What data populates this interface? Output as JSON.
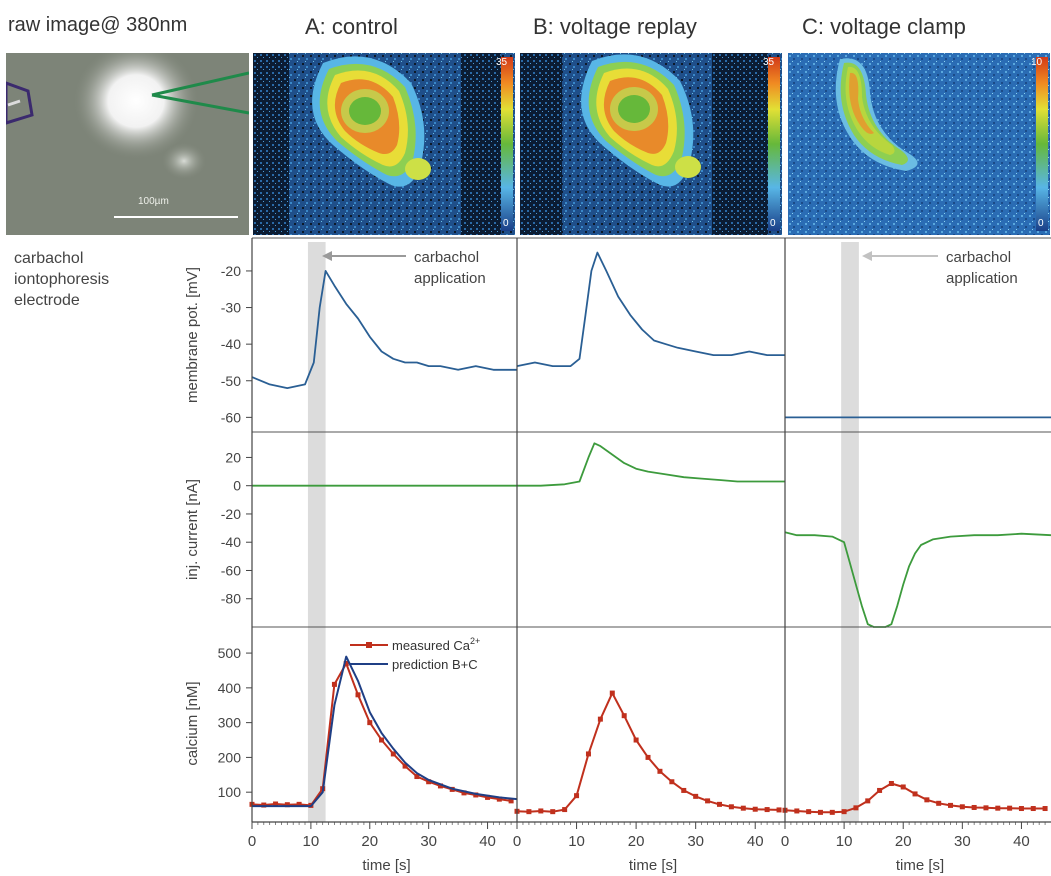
{
  "headers": {
    "raw": "raw image@ 380nm",
    "a": "A: control",
    "b": "B: voltage replay",
    "c": "C: voltage clamp"
  },
  "raw_image": {
    "scale_bar_label": "100µm"
  },
  "colorbars": {
    "a": {
      "max": "35",
      "min": "0"
    },
    "b": {
      "max": "35",
      "min": "0"
    },
    "c": {
      "max": "10",
      "min": "0"
    }
  },
  "side_labels": [
    "carbachol",
    "iontophoresis",
    "electrode"
  ],
  "annotations": {
    "a_line1": "carbachol",
    "a_line2": "application",
    "c_line1": "carbachol",
    "c_line2": "application"
  },
  "legend": {
    "measured": "measured Ca",
    "measured_sup": "2+",
    "prediction": "prediction B+C"
  },
  "colors": {
    "voltage": "#2a5f94",
    "current": "#3d9b3d",
    "calcium": "#c0301d",
    "prediction": "#1f3f85",
    "shade": "#d6d6d6"
  },
  "chart_data": {
    "type": "line",
    "x_ticks": [
      0,
      10,
      20,
      30,
      40
    ],
    "xlabel": "time [s]",
    "xlim": [
      0,
      45
    ],
    "stimulus_window": [
      9.5,
      12.5
    ],
    "rows": [
      {
        "key": "vm",
        "ylabel": "membrane pot. [mV]",
        "ylim": [
          -64,
          -11
        ],
        "ticks": [
          -20,
          -30,
          -40,
          -50,
          -60
        ]
      },
      {
        "key": "cur",
        "ylabel": "inj. current [nA]",
        "ylim": [
          -100,
          38
        ],
        "ticks": [
          20,
          0,
          -20,
          -40,
          -60,
          -80
        ]
      },
      {
        "key": "ca",
        "ylabel": "calcium [nM]",
        "ylim": [
          20,
          575
        ],
        "ticks": [
          100,
          200,
          300,
          400,
          500
        ]
      }
    ],
    "panels": [
      {
        "name": "A: control",
        "vm": {
          "x": [
            0,
            3,
            6,
            9,
            10.5,
            11.5,
            12.5,
            14,
            16,
            18,
            20,
            22,
            24,
            26,
            28,
            30,
            32,
            35,
            38,
            41,
            45
          ],
          "y": [
            -49,
            -51,
            -52,
            -51,
            -45,
            -30,
            -20,
            -24,
            -29,
            -33,
            -38,
            -42,
            -44,
            -45,
            -45,
            -46,
            -46,
            -47,
            -46,
            -47,
            -47
          ]
        },
        "cur": {
          "x": [
            0,
            10,
            20,
            30,
            45
          ],
          "y": [
            0,
            0,
            0,
            0,
            0
          ]
        },
        "ca": {
          "series": [
            {
              "name": "measured Ca2+",
              "x": [
                0,
                2,
                4,
                6,
                8,
                10,
                12,
                14,
                16,
                18,
                20,
                22,
                24,
                26,
                28,
                30,
                32,
                34,
                36,
                38,
                40,
                42,
                44
              ],
              "y": [
                65,
                63,
                66,
                64,
                65,
                62,
                110,
                410,
                470,
                380,
                300,
                250,
                210,
                175,
                145,
                130,
                118,
                108,
                98,
                92,
                85,
                80,
                75
              ]
            },
            {
              "name": "prediction B+C",
              "x": [
                0,
                4,
                8,
                10,
                12,
                14,
                16,
                18,
                20,
                22,
                24,
                26,
                28,
                30,
                34,
                38,
                42,
                45
              ],
              "y": [
                60,
                60,
                60,
                60,
                100,
                350,
                490,
                420,
                330,
                270,
                225,
                185,
                155,
                135,
                110,
                95,
                85,
                80
              ]
            }
          ]
        }
      },
      {
        "name": "B: voltage replay",
        "vm": {
          "x": [
            0,
            3,
            6,
            9,
            10.5,
            11.5,
            12.5,
            13.5,
            15,
            17,
            19,
            21,
            23,
            25,
            27,
            30,
            33,
            36,
            39,
            42,
            45
          ],
          "y": [
            -46,
            -45,
            -46,
            -46,
            -44,
            -32,
            -20,
            -15,
            -20,
            -27,
            -32,
            -36,
            -39,
            -40,
            -41,
            -42,
            -43,
            -43,
            -42,
            -43,
            -43
          ]
        },
        "cur": {
          "x": [
            0,
            4,
            8,
            10.5,
            12,
            13,
            14,
            16,
            18,
            20,
            22,
            25,
            28,
            31,
            34,
            37,
            40,
            43,
            45
          ],
          "y": [
            0,
            0,
            1,
            3,
            20,
            30,
            28,
            22,
            16,
            12,
            10,
            8,
            6,
            5,
            4,
            3,
            3,
            3,
            3
          ]
        },
        "ca": {
          "series": [
            {
              "name": "measured Ca2+",
              "x": [
                0,
                2,
                4,
                6,
                8,
                10,
                12,
                14,
                16,
                18,
                20,
                22,
                24,
                26,
                28,
                30,
                32,
                34,
                36,
                38,
                40,
                42,
                44
              ],
              "y": [
                45,
                44,
                46,
                44,
                50,
                90,
                210,
                310,
                385,
                320,
                250,
                200,
                160,
                130,
                105,
                88,
                75,
                65,
                58,
                54,
                51,
                50,
                49
              ]
            }
          ]
        }
      },
      {
        "name": "C: voltage clamp",
        "vm": {
          "x": [
            0,
            5,
            10,
            15,
            20,
            25,
            30,
            35,
            40,
            45
          ],
          "y": [
            -60,
            -60,
            -60,
            -60,
            -60,
            -60,
            -60,
            -60,
            -60,
            -60
          ]
        },
        "cur": {
          "x": [
            0,
            2,
            5,
            8,
            10,
            11,
            12,
            13,
            14,
            15,
            16,
            17,
            18,
            19,
            20,
            21,
            22,
            23,
            25,
            28,
            32,
            36,
            40,
            45
          ],
          "y": [
            -33,
            -35,
            -35,
            -36,
            -40,
            -55,
            -70,
            -85,
            -98,
            -100,
            -100,
            -100,
            -98,
            -85,
            -70,
            -57,
            -48,
            -42,
            -38,
            -36,
            -35,
            -35,
            -34,
            -35
          ]
        },
        "ca": {
          "series": [
            {
              "name": "measured Ca2+",
              "x": [
                0,
                2,
                4,
                6,
                8,
                10,
                12,
                14,
                16,
                18,
                20,
                22,
                24,
                26,
                28,
                30,
                32,
                34,
                36,
                38,
                40,
                42,
                44
              ],
              "y": [
                48,
                46,
                44,
                42,
                42,
                44,
                55,
                75,
                105,
                125,
                115,
                95,
                78,
                68,
                62,
                58,
                56,
                55,
                54,
                54,
                53,
                53,
                53
              ]
            }
          ]
        }
      }
    ]
  }
}
